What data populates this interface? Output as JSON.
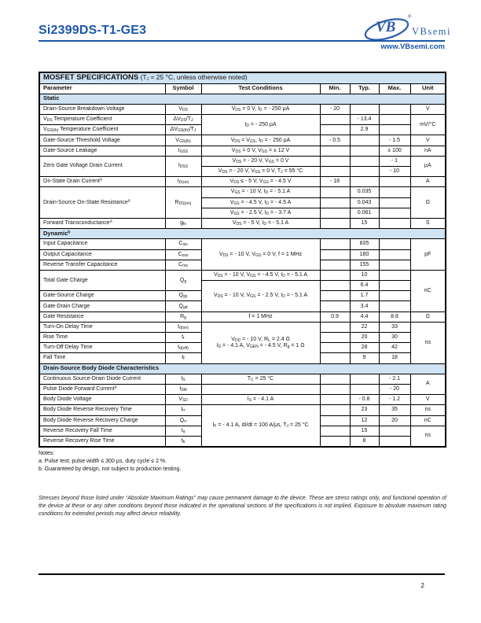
{
  "header": {
    "part_number": "Si2399DS-T1-GE3",
    "accent_color": "#1b57a8",
    "logo": {
      "monogram": "VB",
      "registered": "®",
      "name": "VBsemi",
      "url": "www.VBsemi.com",
      "logo_color": "#2a5caa"
    }
  },
  "table": {
    "title_bold": "MOSFET SPECIFICATIONS",
    "title_rest": " (T~J~ = 25 °C, unless otherwise noted)",
    "section_bg": "#cfe3f2",
    "columns": [
      "Parameter",
      "Symbol",
      "Test Conditions",
      "Min.",
      "Typ.",
      "Max.",
      "Unit"
    ],
    "rows": [
      {
        "section": "Static"
      },
      {
        "cells": [
          "Drain-Source Breakdown Voltage",
          "V~DS~",
          "V~DS~ = 0 V, I~D~ = - 250 µA",
          "- 20",
          "",
          "",
          "V"
        ]
      },
      {
        "cells": [
          "V~DS~ Temperature Coefficient",
          "ΔV~DS~/T~J~",
          {
            "t": "I~D~ = - 250 µA",
            "r": 2
          },
          "",
          "- 13.4",
          "",
          {
            "t": "mV/°C",
            "r": 2
          }
        ]
      },
      {
        "cells": [
          "V~GS(th)~ Temperature Coefficient",
          "ΔV~GS(th)~/T~J~",
          "",
          "2.9",
          ""
        ]
      },
      {
        "cells": [
          "Gate-Source Threshold Voltage",
          "V~GS(th)~",
          "V~DS~ = V~GS~, I~D~ = - 250 µA",
          "- 0.5",
          "",
          "- 1.5",
          "V"
        ]
      },
      {
        "cells": [
          "Gate-Source Leakage",
          "I~GSS~",
          "V~DS~ = 0 V, V~GS~ = ± 12 V",
          "",
          "",
          "± 100",
          "nA"
        ]
      },
      {
        "cells": [
          {
            "t": "Zero Gate Voltage Drain Current",
            "r": 2
          },
          {
            "t": "I~DSS~",
            "r": 2
          },
          "V~DS~ = - 20 V, V~GS~ = 0 V",
          "",
          "",
          "- 1",
          {
            "t": "µA",
            "r": 2
          }
        ]
      },
      {
        "cells": [
          "V~DS~ = - 20 V, V~GS~ = 0 V, T~J~ = 55 °C",
          "",
          "",
          "- 10"
        ]
      },
      {
        "cells": [
          "On-State Drain Current^a^",
          "I~D(on)~",
          "V~DS~ ≤ - 5 V, V~GS~ = - 4.5 V",
          "- 18",
          "",
          "",
          "A"
        ]
      },
      {
        "cells": [
          {
            "t": "Drain-Source On-State Resistance^a^",
            "r": 3
          },
          {
            "t": "R~DS(on)~",
            "r": 3
          },
          "V~GS~ = - 10 V, I~D~ = - 5.1 A",
          "",
          "0.035",
          "",
          {
            "t": "Ω",
            "r": 3
          }
        ]
      },
      {
        "cells": [
          "V~GS~ = - 4.5 V, I~D~ = - 4.5 A",
          "",
          "0.043",
          ""
        ]
      },
      {
        "cells": [
          "V~GS~ = - 2.5 V, I~D~ = - 3.7 A",
          "",
          "0.061",
          ""
        ]
      },
      {
        "cells": [
          "Forward Transconductance^a^",
          "g~fs~",
          "V~DS~ = - 5 V, I~D~ = - 5.1 A",
          "",
          "15",
          "",
          "S"
        ]
      },
      {
        "section": "Dynamic^b^"
      },
      {
        "cells": [
          "Input Capacitance",
          "C~iss~",
          {
            "t": "V~DS~ = - 10 V, V~GS~ = 0 V, f = 1 MHz",
            "r": 3
          },
          "",
          "835",
          "",
          {
            "t": "pF",
            "r": 3
          }
        ]
      },
      {
        "cells": [
          "Output Capacitance",
          "C~oss~",
          "",
          "180",
          ""
        ]
      },
      {
        "cells": [
          "Reverse Transfer Capacitance",
          "C~rss~",
          "",
          "155",
          ""
        ]
      },
      {
        "cells": [
          {
            "t": "Total Gate Charge",
            "r": 2
          },
          {
            "t": "Q~g~",
            "r": 2
          },
          "V~DS~ = - 10 V, V~GS~ = - 4.5 V, I~D~ = - 5.1 A",
          "",
          "10",
          "",
          {
            "t": "nC",
            "r": 4
          }
        ]
      },
      {
        "cells": [
          {
            "t": "V~DS~ = - 10 V, V~GS~ = - 2.5 V, I~D~ = - 5.1 A",
            "r": 3
          },
          "",
          "6.4",
          ""
        ]
      },
      {
        "cells": [
          "Gate-Source Charge",
          "Q~gs~",
          "",
          "1.7",
          ""
        ]
      },
      {
        "cells": [
          "Gate-Drain Charge",
          "Q~gd~",
          "",
          "3.4",
          ""
        ]
      },
      {
        "cells": [
          "Gate Resistance",
          "R~g~",
          "f = 1 MHz",
          "0.9",
          "4.4",
          "8.8",
          "Ω"
        ]
      },
      {
        "cells": [
          "Turn-On Delay Time",
          "t~d(on)~",
          {
            "t": "V~DD~ = - 10 V, R~L~ = 2.4 Ω\nI~D~ = - 4.1 A, V~GEN~ = - 4.5 V, R~g~ = 1 Ω",
            "r": 4
          },
          "",
          "22",
          "33",
          {
            "t": "ns",
            "r": 4
          }
        ]
      },
      {
        "cells": [
          "Rise Time",
          "t~r~",
          "",
          "20",
          "30"
        ]
      },
      {
        "cells": [
          "Turn-Off Delay Time",
          "t~d(off)~",
          "",
          "28",
          "42"
        ]
      },
      {
        "cells": [
          "Fall Time",
          "t~f~",
          "",
          "9",
          "18"
        ]
      },
      {
        "section": "Drain-Source Body Diode Characteristics"
      },
      {
        "cells": [
          "Continuous Source-Drain Diode Current",
          "I~S~",
          "T~C~ = 25 °C",
          "",
          "",
          "- 2.1",
          {
            "t": "A",
            "r": 2
          }
        ]
      },
      {
        "cells": [
          "Pulse Diode Forward Current^a^",
          "I~SM~",
          "",
          "",
          "",
          "- 20"
        ]
      },
      {
        "cells": [
          "Body Diode Voltage",
          "V~SD~",
          "I~S~ = - 4.1 A",
          "",
          "- 0.8",
          "- 1.2",
          "V"
        ]
      },
      {
        "cells": [
          "Body Diode Reverse Recovery Time",
          "t~rr~",
          {
            "t": "I~F~ = - 4.1 A, dI/dt = 100 A/µs, T~J~ = 25 °C",
            "r": 4
          },
          "",
          "23",
          "35",
          "ns"
        ]
      },
      {
        "cells": [
          "Body Diode Reverse Recovery Charge",
          "Q~rr~",
          "",
          "12",
          "20",
          "nC"
        ]
      },
      {
        "cells": [
          "Reverse Recovery Fall Time",
          "t~a~",
          "",
          "15",
          "",
          {
            "t": "ns",
            "r": 2
          }
        ]
      },
      {
        "cells": [
          "Reverse Recovery Rise Time",
          "t~b~",
          "",
          "8",
          ""
        ]
      }
    ]
  },
  "notes": {
    "heading": "Notes:",
    "items": [
      "a. Pulse test; pulse width ≤ 300 µs, duty cycle ≤ 2 %.",
      "b. Guaranteed by design, not subject to production testing."
    ]
  },
  "disclaimer": "Stresses beyond those listed under “Absolute Maximum Ratings” may cause permanent damage to the device. These are stress ratings only, and functional operation of the device at these or any other conditions beyond those indicated in the operational sections of the specifications is not implied. Exposure to absolute maximum rating conditions for extended periods may affect device reliability.",
  "footer": {
    "page_number": "2"
  }
}
